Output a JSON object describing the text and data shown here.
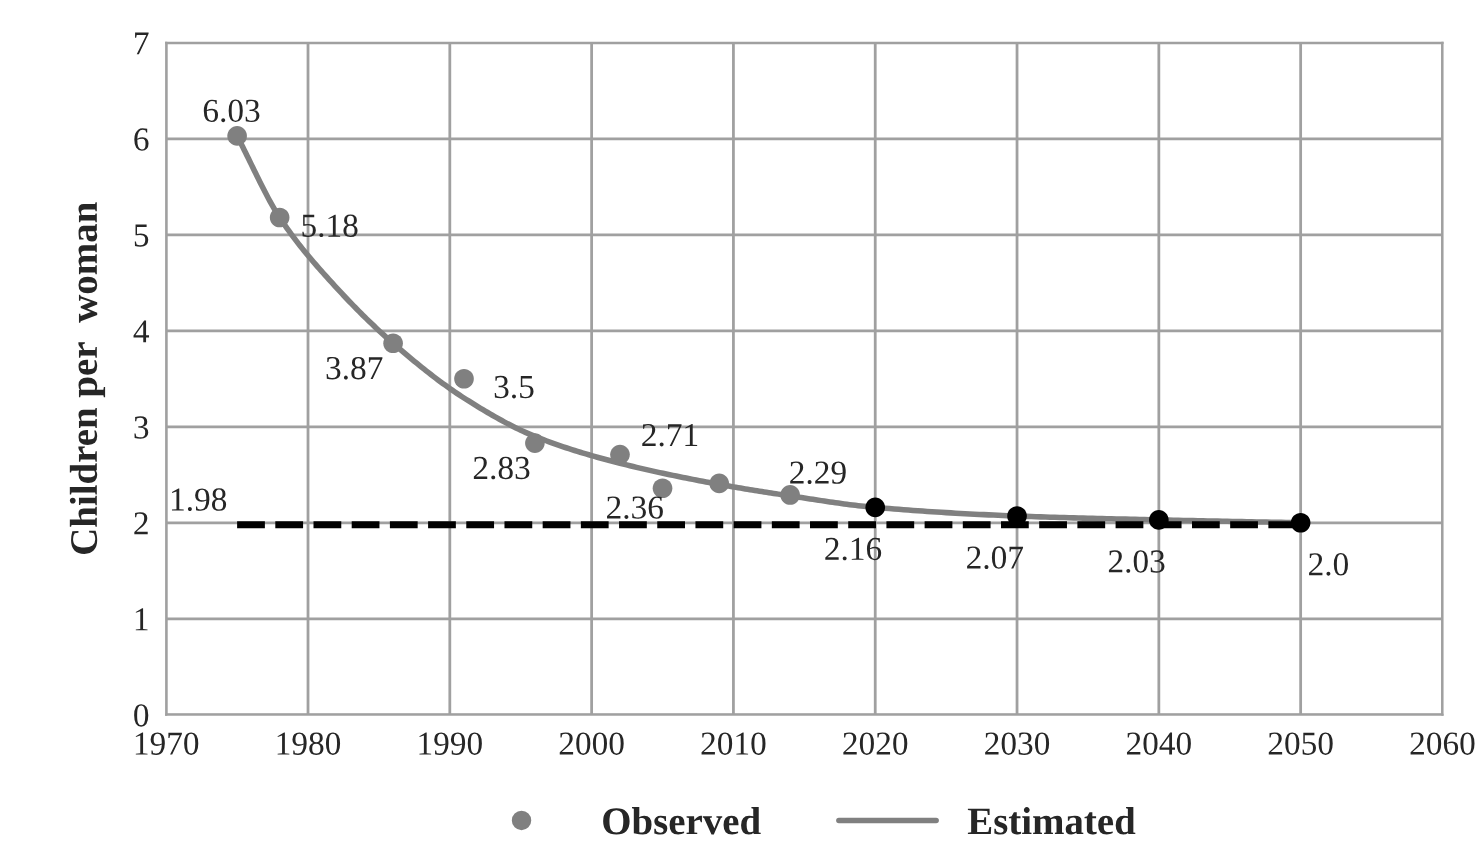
{
  "chart_data": {
    "type": "line",
    "ylabel": "Children per  woman",
    "xlim": [
      1970,
      2060
    ],
    "xticks": [
      1970,
      1980,
      1990,
      2000,
      2010,
      2020,
      2030,
      2040,
      2050,
      2060
    ],
    "ylim": [
      0,
      7
    ],
    "yticks": [
      0,
      1,
      2,
      3,
      4,
      5,
      6,
      7
    ],
    "grid": true,
    "legend": "bottom",
    "series": [
      {
        "name": "Observed",
        "type": "scatter",
        "marker": "circle",
        "color": "#808080",
        "x": [
          1975,
          1978,
          1986,
          1991,
          1996,
          2002,
          2005,
          2009,
          2014
        ],
        "values": [
          6.03,
          5.18,
          3.87,
          3.5,
          2.83,
          2.71,
          2.36,
          2.41,
          2.29
        ],
        "value_labels": [
          "6.03",
          "5.18",
          "3.87",
          "3.5",
          "2.83",
          "2.71",
          "2.36",
          null,
          "2.29"
        ]
      },
      {
        "name": "Estimated",
        "line_style": "solid",
        "color": "#808080",
        "x": [
          1975,
          1978,
          1982,
          1986,
          1991,
          1996,
          2002,
          2009,
          2014,
          2020,
          2030,
          2040,
          2050
        ],
        "values": [
          6.03,
          5.18,
          4.45,
          3.87,
          3.3,
          2.9,
          2.62,
          2.4,
          2.28,
          2.16,
          2.07,
          2.03,
          2.0
        ]
      },
      {
        "type": "scatter",
        "marker": "circle",
        "color": "#000000",
        "x": [
          2020,
          2030,
          2040,
          2050
        ],
        "values": [
          2.16,
          2.07,
          2.03,
          2.0
        ],
        "value_labels": [
          "2.16",
          "2.07",
          "2.03",
          "2.0"
        ]
      },
      {
        "type": "line",
        "line_style": "dashed",
        "color": "#000000",
        "x": [
          1975,
          2050
        ],
        "values": [
          1.98,
          1.98
        ],
        "value_labels": [
          "1.98",
          null
        ]
      }
    ]
  }
}
